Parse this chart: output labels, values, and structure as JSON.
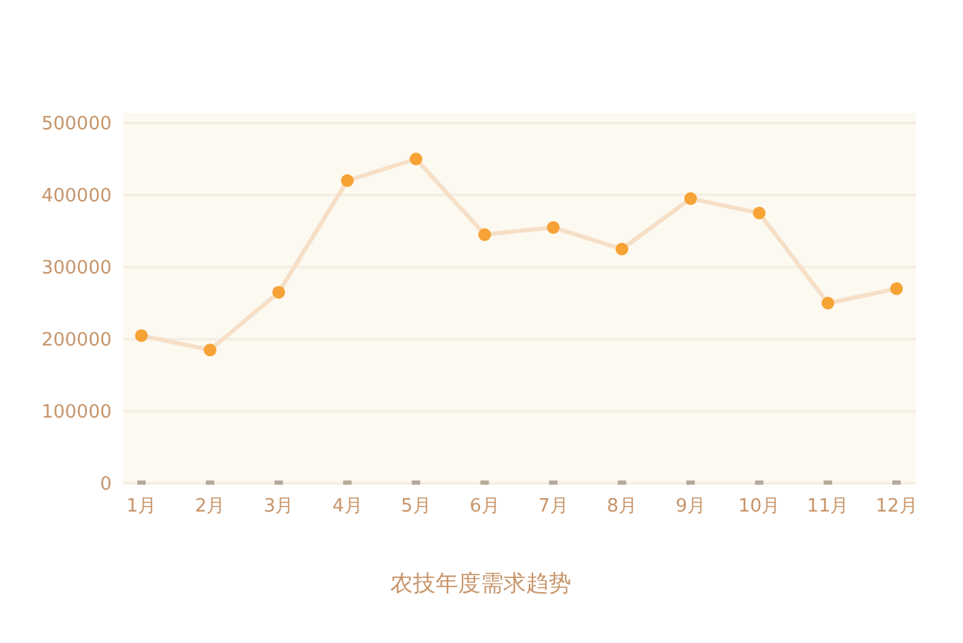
{
  "chart_data": {
    "type": "line",
    "title": "农技年度需求趋势",
    "categories": [
      "1月",
      "2月",
      "3月",
      "4月",
      "5月",
      "6月",
      "7月",
      "8月",
      "9月",
      "10月",
      "11月",
      "12月"
    ],
    "series": [
      {
        "color": "#f7a234",
        "values": [
          205000,
          185000,
          265000,
          420000,
          450000,
          345000,
          355000,
          325000,
          395000,
          375000,
          250000,
          270000
        ]
      }
    ],
    "ylim": [
      0,
      500000
    ],
    "yticks": [
      0,
      100000,
      200000,
      300000,
      400000,
      500000
    ],
    "grid": "y",
    "marker": "circle"
  }
}
